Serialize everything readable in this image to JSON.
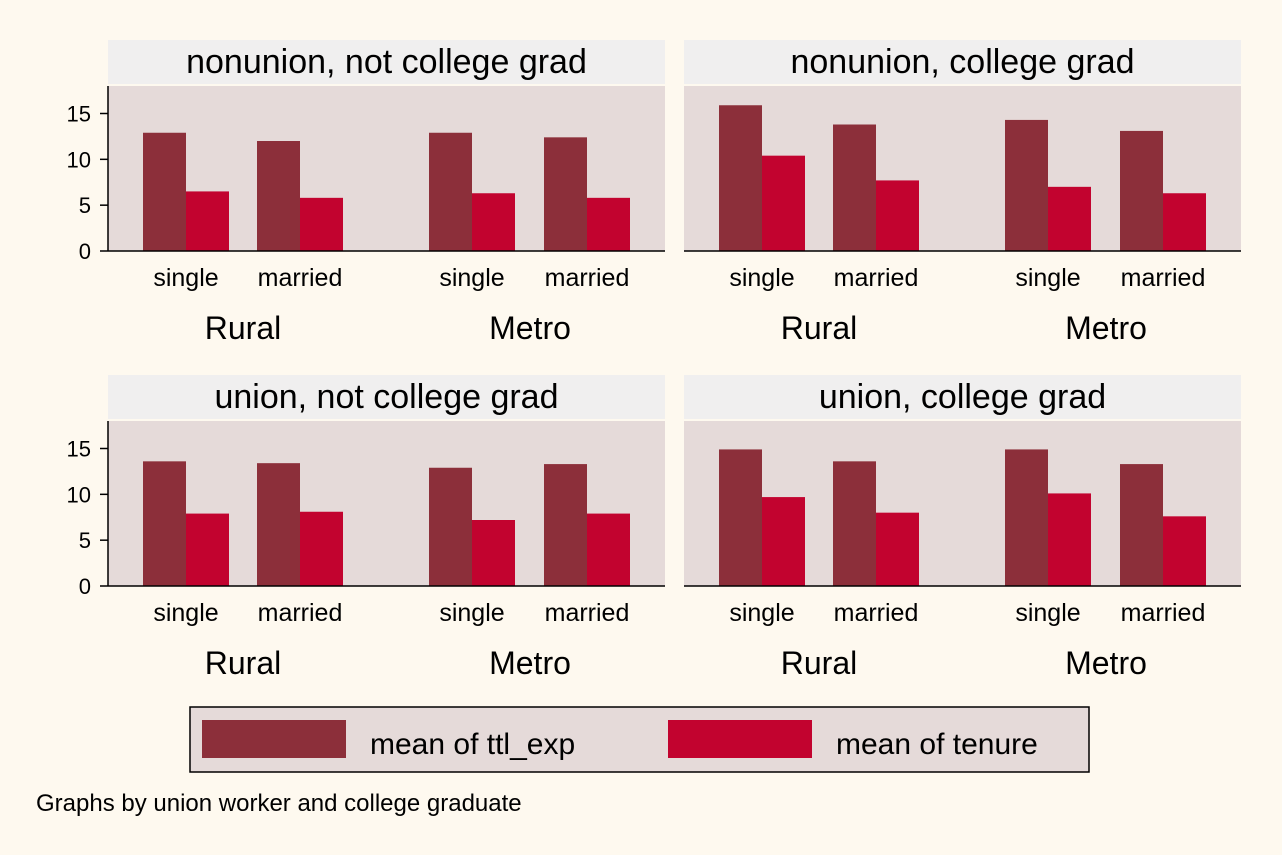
{
  "colors": {
    "page_background": "#fef9ef",
    "plot_background": "#e5dad9",
    "title_strip": "#f0efef",
    "series_ttl_exp": "#8c2f3a",
    "series_tenure": "#c2032f"
  },
  "chart_data": {
    "type": "bar",
    "layout": "2x2 small multiples",
    "y_range": [
      0,
      18
    ],
    "y_ticks": [
      "0",
      "5",
      "10",
      "15"
    ],
    "categories": [
      "single",
      "married",
      "single",
      "married"
    ],
    "groups": [
      "Rural",
      "Metro"
    ],
    "legend": {
      "placement": "bottom",
      "entries": [
        "mean of ttl_exp",
        "mean of tenure"
      ]
    },
    "note": "Graphs by union worker and college graduate",
    "panels": [
      {
        "title": "nonunion, not college grad",
        "series": [
          {
            "name": "mean of ttl_exp",
            "values": [
              12.9,
              12.0,
              12.9,
              12.4
            ]
          },
          {
            "name": "mean of tenure",
            "values": [
              6.5,
              5.8,
              6.3,
              5.8
            ]
          }
        ]
      },
      {
        "title": "nonunion, college grad",
        "series": [
          {
            "name": "mean of ttl_exp",
            "values": [
              15.9,
              13.8,
              14.3,
              13.1
            ]
          },
          {
            "name": "mean of tenure",
            "values": [
              10.4,
              7.7,
              7.0,
              6.3
            ]
          }
        ]
      },
      {
        "title": "union, not college grad",
        "series": [
          {
            "name": "mean of ttl_exp",
            "values": [
              13.6,
              13.4,
              12.9,
              13.3
            ]
          },
          {
            "name": "mean of tenure",
            "values": [
              7.9,
              8.1,
              7.2,
              7.9
            ]
          }
        ]
      },
      {
        "title": "union, college grad",
        "series": [
          {
            "name": "mean of ttl_exp",
            "values": [
              14.9,
              13.6,
              14.9,
              13.3
            ]
          },
          {
            "name": "mean of tenure",
            "values": [
              9.7,
              8.0,
              10.1,
              7.6
            ]
          }
        ]
      }
    ]
  }
}
